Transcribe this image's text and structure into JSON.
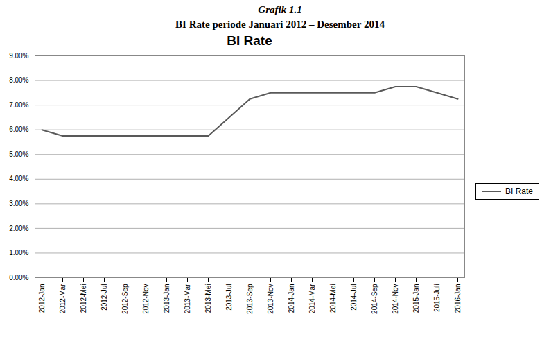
{
  "chart_data": {
    "type": "line",
    "title": "Grafik 1.1",
    "subtitle": "BI Rate periode Januari 2012 – Desember 2014",
    "chart_title": "BI Rate",
    "categories": [
      "2012-Jan",
      "2012-Mar",
      "2012-Mei",
      "2012-Jul",
      "2012-Sep",
      "2012-Nov",
      "2013-Jan",
      "2013-Mar",
      "2013-Mei",
      "2013-Jul",
      "2013-Sep",
      "2013-Nov",
      "2014-Jan",
      "2014-Mar",
      "2014-Mei",
      "2014-Jul",
      "2014-Sep",
      "2014-Nov",
      "2015-Jan",
      "2015-Juli",
      "2016-Jan"
    ],
    "series": [
      {
        "name": "BI Rate",
        "color": "#595959",
        "values": [
          6.0,
          5.75,
          5.75,
          5.75,
          5.75,
          5.75,
          5.75,
          5.75,
          5.75,
          6.5,
          7.25,
          7.5,
          7.5,
          7.5,
          7.5,
          7.5,
          7.5,
          7.75,
          7.75,
          7.5,
          7.25
        ]
      }
    ],
    "ylim": [
      0.0,
      9.0
    ],
    "yticks": [
      {
        "value": 0.0,
        "label": "0.00%"
      },
      {
        "value": 1.0,
        "label": "1.00%"
      },
      {
        "value": 2.0,
        "label": "2.00%"
      },
      {
        "value": 3.0,
        "label": "3.00%"
      },
      {
        "value": 4.0,
        "label": "4.00%"
      },
      {
        "value": 5.0,
        "label": "5.00%"
      },
      {
        "value": 6.0,
        "label": "6.00%"
      },
      {
        "value": 7.0,
        "label": "7.00%"
      },
      {
        "value": 8.0,
        "label": "8.00%"
      },
      {
        "value": 9.0,
        "label": "9.00%"
      }
    ],
    "grid": true,
    "legend": "right"
  }
}
